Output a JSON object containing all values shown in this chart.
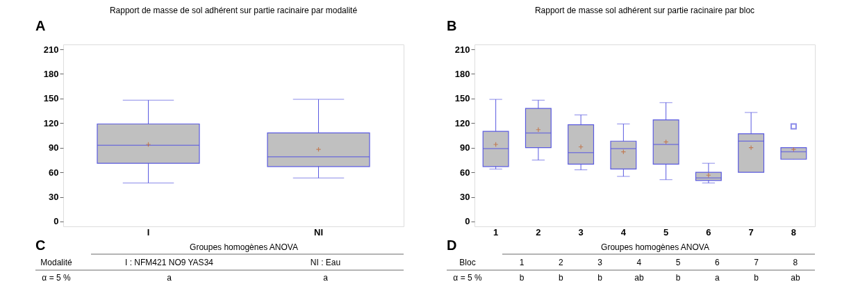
{
  "chart_data": [
    {
      "type": "box",
      "title": "Rapport de masse de sol adhérent sur partie racinaire par modalité",
      "categories": [
        "I",
        "NI"
      ],
      "series": [
        {
          "color": "#c0c0c0",
          "boxes": [
            {
              "low": 47,
              "q1": 71,
              "median": 93,
              "q3": 119,
              "high": 148,
              "mean": 94
            },
            {
              "low": 53,
              "q1": 67,
              "median": 79,
              "q3": 108,
              "high": 149,
              "mean": 88
            }
          ]
        }
      ],
      "ylim": [
        -6,
        216
      ],
      "yticks": [
        0,
        30,
        60,
        90,
        120,
        150,
        180,
        210
      ],
      "grid": false,
      "annotations": [
        "A",
        "C",
        "Groupes homogènes ANOVA",
        "Modalité",
        "I : NFM421 NO9 YAS34",
        "NI : Eau",
        "α = 5 %",
        "a",
        "a"
      ]
    },
    {
      "type": "box",
      "title": "Rapport de masse sol adhérent sur partie racinaire par bloc",
      "categories": [
        "1",
        "2",
        "3",
        "4",
        "5",
        "6",
        "7",
        "8"
      ],
      "series": [
        {
          "color": "#c0c0c0",
          "boxes": [
            {
              "low": 64,
              "q1": 67,
              "median": 89,
              "q3": 110,
              "high": 149,
              "mean": 94
            },
            {
              "low": 75,
              "q1": 90,
              "median": 108,
              "q3": 138,
              "high": 148,
              "mean": 112
            },
            {
              "low": 63,
              "q1": 70,
              "median": 84,
              "q3": 118,
              "high": 130,
              "mean": 91
            },
            {
              "low": 55,
              "q1": 64,
              "median": 89,
              "q3": 98,
              "high": 119,
              "mean": 85
            },
            {
              "low": 51,
              "q1": 70,
              "median": 94,
              "q3": 124,
              "high": 145,
              "mean": 97
            },
            {
              "low": 47,
              "q1": 50,
              "median": 53,
              "q3": 60,
              "high": 71,
              "mean": 56.5
            },
            {
              "low": 60,
              "q1": 60,
              "median": 98,
              "q3": 107,
              "high": 133,
              "mean": 90
            },
            {
              "low": 76,
              "q1": 76,
              "median": 85,
              "q3": 90,
              "high": 90,
              "mean": 88,
              "outliers": [
                116
              ]
            }
          ]
        }
      ],
      "ylim": [
        -6,
        216
      ],
      "yticks": [
        0,
        30,
        60,
        90,
        120,
        150,
        180,
        210
      ],
      "grid": false,
      "annotations": [
        "B",
        "D",
        "Groupes homogènes ANOVA",
        "Bloc",
        "1",
        "2",
        "3",
        "4",
        "5",
        "6",
        "7",
        "8",
        "α = 5 %",
        "b",
        "b",
        "b",
        "ab",
        "b",
        "a",
        "b",
        "ab"
      ]
    }
  ]
}
